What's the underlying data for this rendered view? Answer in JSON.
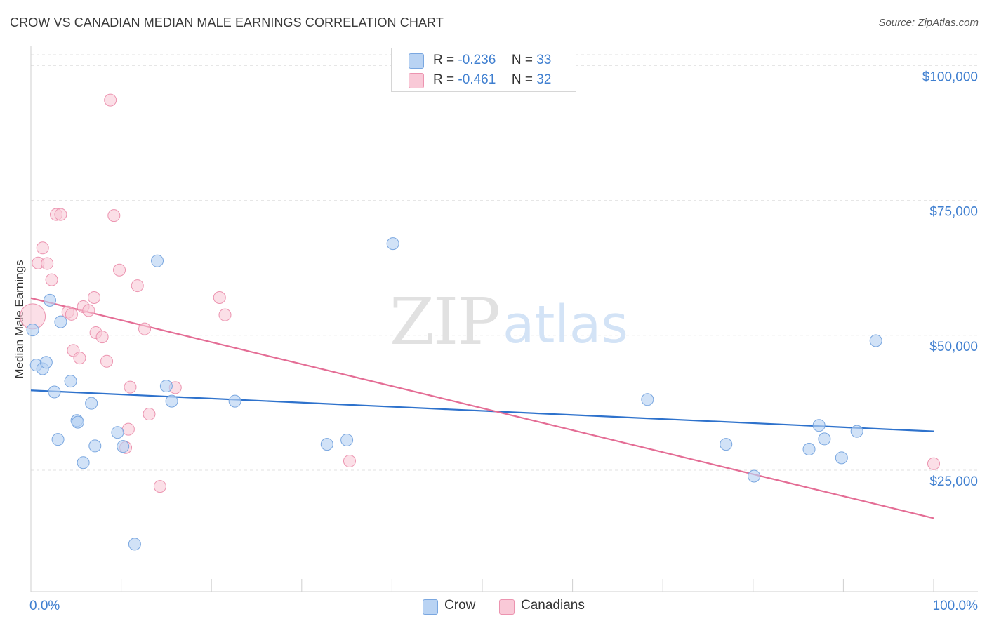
{
  "header": {
    "title": "CROW VS CANADIAN MEDIAN MALE EARNINGS CORRELATION CHART",
    "source": "Source: ZipAtlas.com"
  },
  "legend": {
    "crow": {
      "r_label": "R =",
      "r_value": "-0.236",
      "n_label": "N =",
      "n_value": "33"
    },
    "canadians": {
      "r_label": "R =",
      "r_value": "-0.461",
      "n_label": "N =",
      "n_value": "32"
    }
  },
  "bottom_legend": {
    "crow": "Crow",
    "canadians": "Canadians"
  },
  "watermark": {
    "zip": "ZIP",
    "atlas": "atlas"
  },
  "colors": {
    "crow_fill": "#b9d3f3",
    "crow_stroke": "#7aa7e0",
    "crow_line": "#2e72cc",
    "can_fill": "#f9c9d7",
    "can_stroke": "#ec94b0",
    "can_line": "#e46d95",
    "axis_label": "#3f7fd0",
    "grid": "#e2e2e2"
  },
  "chart_data": {
    "type": "scatter",
    "title": "CROW VS CANADIAN MEDIAN MALE EARNINGS CORRELATION CHART",
    "xlabel": "",
    "ylabel": "Median Male Earnings",
    "xlim": [
      0,
      100
    ],
    "ylim": [
      2500,
      102000
    ],
    "x_tick_labels": [
      "0.0%",
      "100.0%"
    ],
    "y_ticks": [
      25000,
      50000,
      75000,
      100000
    ],
    "y_tick_labels": [
      "$25,000",
      "$50,000",
      "$75,000",
      "$100,000"
    ],
    "series": [
      {
        "name": "Crow",
        "r": -0.236,
        "n": 33,
        "trend": {
          "x": [
            0,
            100
          ],
          "y": [
            39800,
            32200
          ]
        },
        "points": [
          {
            "x": 0.2,
            "y": 51000
          },
          {
            "x": 0.6,
            "y": 44500
          },
          {
            "x": 1.3,
            "y": 43800
          },
          {
            "x": 1.7,
            "y": 45000
          },
          {
            "x": 2.1,
            "y": 56500
          },
          {
            "x": 2.6,
            "y": 39500
          },
          {
            "x": 3.0,
            "y": 30700
          },
          {
            "x": 3.3,
            "y": 52500
          },
          {
            "x": 4.4,
            "y": 41500
          },
          {
            "x": 5.1,
            "y": 34200
          },
          {
            "x": 5.2,
            "y": 33900
          },
          {
            "x": 5.8,
            "y": 26400
          },
          {
            "x": 6.7,
            "y": 37400
          },
          {
            "x": 7.1,
            "y": 29500
          },
          {
            "x": 9.6,
            "y": 32000
          },
          {
            "x": 10.2,
            "y": 29400
          },
          {
            "x": 11.5,
            "y": 11300
          },
          {
            "x": 14.0,
            "y": 63800
          },
          {
            "x": 15.0,
            "y": 40600
          },
          {
            "x": 15.6,
            "y": 37800
          },
          {
            "x": 22.6,
            "y": 37800
          },
          {
            "x": 32.8,
            "y": 29800
          },
          {
            "x": 35.0,
            "y": 30600
          },
          {
            "x": 40.1,
            "y": 67000
          },
          {
            "x": 68.3,
            "y": 38100
          },
          {
            "x": 77.0,
            "y": 29800
          },
          {
            "x": 80.1,
            "y": 23900
          },
          {
            "x": 86.2,
            "y": 28900
          },
          {
            "x": 87.3,
            "y": 33300
          },
          {
            "x": 87.9,
            "y": 30800
          },
          {
            "x": 89.8,
            "y": 27300
          },
          {
            "x": 91.5,
            "y": 32200
          },
          {
            "x": 93.6,
            "y": 49000
          }
        ]
      },
      {
        "name": "Canadians",
        "r": -0.461,
        "n": 32,
        "trend": {
          "x": [
            0,
            100
          ],
          "y": [
            56900,
            16100
          ]
        },
        "points": [
          {
            "x": 0.2,
            "y": 53500
          },
          {
            "x": 0.8,
            "y": 63400
          },
          {
            "x": 1.3,
            "y": 66200
          },
          {
            "x": 1.8,
            "y": 63300
          },
          {
            "x": 2.3,
            "y": 60300
          },
          {
            "x": 2.8,
            "y": 72400
          },
          {
            "x": 3.3,
            "y": 72400
          },
          {
            "x": 4.1,
            "y": 54300
          },
          {
            "x": 4.5,
            "y": 53900
          },
          {
            "x": 4.7,
            "y": 47200
          },
          {
            "x": 5.4,
            "y": 45800
          },
          {
            "x": 5.8,
            "y": 55300
          },
          {
            "x": 6.4,
            "y": 54600
          },
          {
            "x": 7.0,
            "y": 57000
          },
          {
            "x": 7.2,
            "y": 50500
          },
          {
            "x": 7.9,
            "y": 49700
          },
          {
            "x": 8.4,
            "y": 45200
          },
          {
            "x": 8.8,
            "y": 93600
          },
          {
            "x": 9.2,
            "y": 72200
          },
          {
            "x": 9.8,
            "y": 62100
          },
          {
            "x": 10.5,
            "y": 29200
          },
          {
            "x": 10.8,
            "y": 32600
          },
          {
            "x": 11.0,
            "y": 40400
          },
          {
            "x": 11.8,
            "y": 59200
          },
          {
            "x": 12.6,
            "y": 51200
          },
          {
            "x": 13.1,
            "y": 35400
          },
          {
            "x": 14.3,
            "y": 22000
          },
          {
            "x": 16.0,
            "y": 40300
          },
          {
            "x": 20.9,
            "y": 57000
          },
          {
            "x": 21.5,
            "y": 53800
          },
          {
            "x": 35.3,
            "y": 26700
          },
          {
            "x": 100.0,
            "y": 26200
          }
        ]
      }
    ]
  }
}
